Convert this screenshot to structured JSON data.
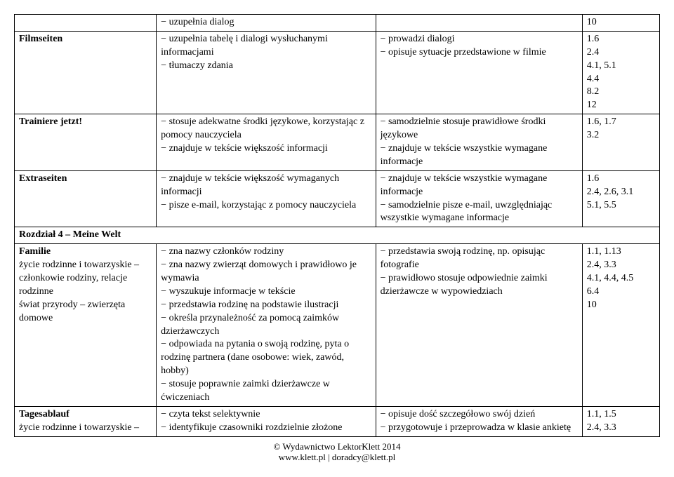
{
  "rows": [
    {
      "c1": "",
      "c2": "− uzupełnia dialog",
      "c3": "",
      "c4": "10"
    },
    {
      "c1_bold": "Filmseiten",
      "c2": "− uzupełnia tabelę i dialogi wysłuchanymi informacjami\n− tłumaczy zdania",
      "c3": "− prowadzi dialogi\n− opisuje sytuacje przedstawione w filmie",
      "c4": "1.6\n2.4\n4.1, 5.1\n4.4\n8.2\n12"
    },
    {
      "c1_bold": "Trainiere jetzt!",
      "c2": "− stosuje adekwatne środki językowe, korzystając z pomocy nauczyciela\n− znajduje w tekście większość informacji",
      "c3": "− samodzielnie stosuje prawidłowe środki językowe\n− znajduje w tekście wszystkie wymagane informacje",
      "c4": "1.6, 1.7\n3.2"
    },
    {
      "c1_bold": "Extraseiten",
      "c2": "− znajduje w tekście większość wymaganych informacji\n− pisze e-mail, korzystając z pomocy nauczyciela",
      "c3": "− znajduje w tekście wszystkie wymagane informacje\n− samodzielnie pisze e-mail, uwzględniając wszystkie wymagane informacje",
      "c4": "1.6\n2.4, 2.6, 3.1\n5.1, 5.5"
    },
    {
      "section": "Rozdział 4 – Meine Welt"
    },
    {
      "c1_bold": "Familie",
      "c1_rest": "życie rodzinne i towarzyskie – członkowie rodziny, relacje rodzinne\nświat przyrody – zwierzęta domowe",
      "c2": "− zna nazwy członków rodziny\n− zna nazwy zwierząt domowych i prawidłowo je wymawia\n− wyszukuje informacje w tekście\n− przedstawia rodzinę na podstawie ilustracji\n− określa przynależność za pomocą zaimków dzierżawczych\n− odpowiada na pytania o swoją rodzinę, pyta o rodzinę partnera (dane osobowe: wiek, zawód, hobby)\n− stosuje poprawnie zaimki dzierżawcze w ćwiczeniach",
      "c3": "− przedstawia swoją rodzinę, np. opisując fotografie\n− prawidłowo stosuje odpowiednie zaimki dzierżawcze w wypowiedziach",
      "c4": "1.1, 1.13\n2.4, 3.3\n4.1, 4.4, 4.5\n6.4\n10"
    },
    {
      "c1_bold": "Tagesablauf",
      "c1_rest": "życie rodzinne i towarzyskie –",
      "c2": "− czyta tekst selektywnie\n− identyfikuje czasowniki rozdzielnie złożone",
      "c3": "− opisuje dość szczegółowo swój dzień\n− przygotowuje i przeprowadza w klasie ankietę",
      "c4": "1.1, 1.5\n2.4, 3.3"
    }
  ],
  "footer": {
    "line1": "© Wydawnictwo LektorKlett 2014",
    "line2": "www.klett.pl | doradcy@klett.pl"
  }
}
